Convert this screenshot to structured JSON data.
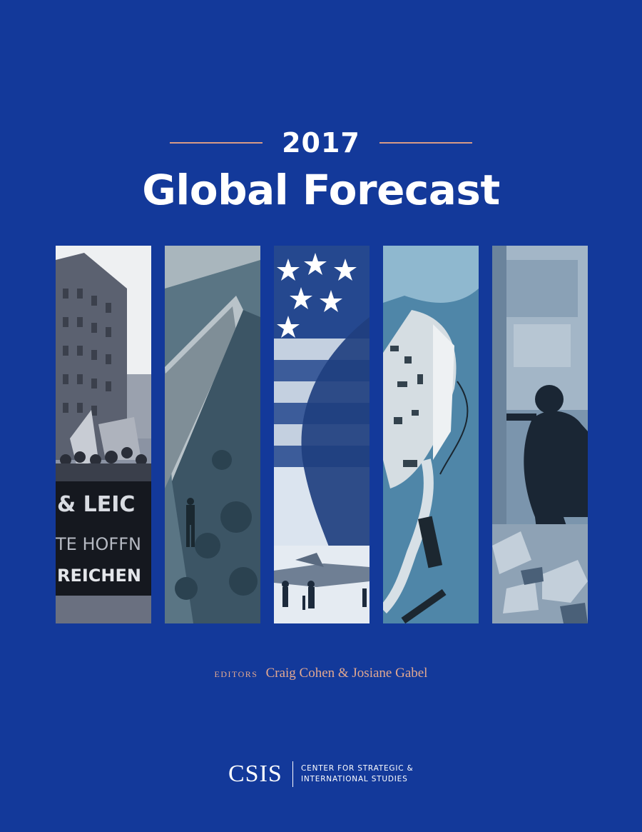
{
  "cover": {
    "year": "2017",
    "title": "Global Forecast",
    "colors": {
      "background": "#13399a",
      "accent_rule": "#d79a86",
      "editors_text": "#e2a890",
      "text": "#ffffff"
    }
  },
  "photos": [
    {
      "name": "protest-march-photo",
      "banner_lines": [
        "& LEIC",
        "TE HOFFN",
        "REICHEN"
      ]
    },
    {
      "name": "border-wall-photo"
    },
    {
      "name": "american-flag-fighter-jet-photo"
    },
    {
      "name": "aerial-island-construction-photo"
    },
    {
      "name": "man-in-rubble-photo"
    }
  ],
  "editors": {
    "label": "editors",
    "names": "Craig Cohen & Josiane Gabel"
  },
  "logo": {
    "mark": "CSIS",
    "line1": "Center for Strategic &",
    "line2": "International Studies"
  }
}
